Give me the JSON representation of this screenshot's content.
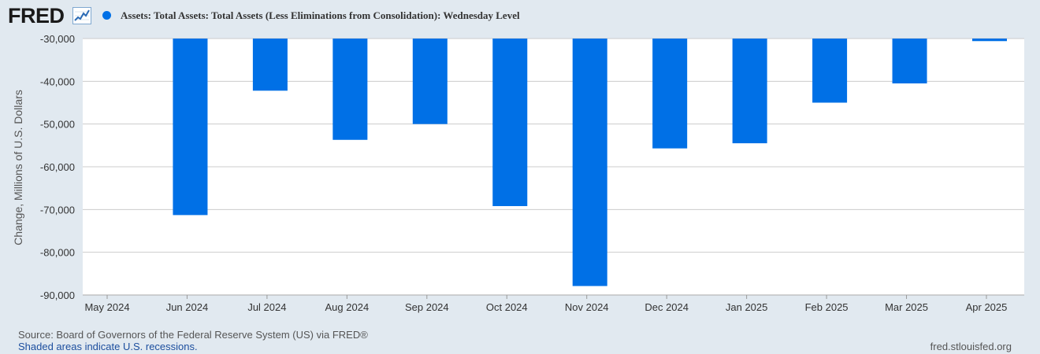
{
  "header": {
    "logo_text": "FRED",
    "logo_icon": "line-graph-icon",
    "series_title": "Assets: Total Assets: Total Assets (Less Eliminations from Consolidation): Wednesday Level"
  },
  "colors": {
    "bar": "#0070e6",
    "page_background": "#e1e9f0",
    "plot_background": "#ffffff",
    "grid": "#cccccc"
  },
  "chart_data": {
    "type": "bar",
    "ylabel": "Change, Millions of U.S. Dollars",
    "ylim": [
      -90000,
      -30000
    ],
    "yticks": [
      -30000,
      -40000,
      -50000,
      -60000,
      -70000,
      -80000,
      -90000
    ],
    "ytick_labels": [
      "-30,000",
      "-40,000",
      "-50,000",
      "-60,000",
      "-70,000",
      "-80,000",
      "-90,000"
    ],
    "categories": [
      "May 2024",
      "Jun 2024",
      "Jul 2024",
      "Aug 2024",
      "Sep 2024",
      "Oct 2024",
      "Nov 2024",
      "Dec 2024",
      "Jan 2025",
      "Feb 2025",
      "Mar 2025",
      "Apr 2025"
    ],
    "series": [
      {
        "values": [
          null,
          -71300,
          -42200,
          -53700,
          -50000,
          -69200,
          -87900,
          -55700,
          -54500,
          -45000,
          -40500,
          -30600
        ]
      }
    ],
    "grid": true
  },
  "footer": {
    "source": "Source: Board of Governors of the Federal Reserve System (US) via FRED®",
    "recession_note": "Shaded areas indicate U.S. recessions.",
    "site": "fred.stlouisfed.org"
  }
}
